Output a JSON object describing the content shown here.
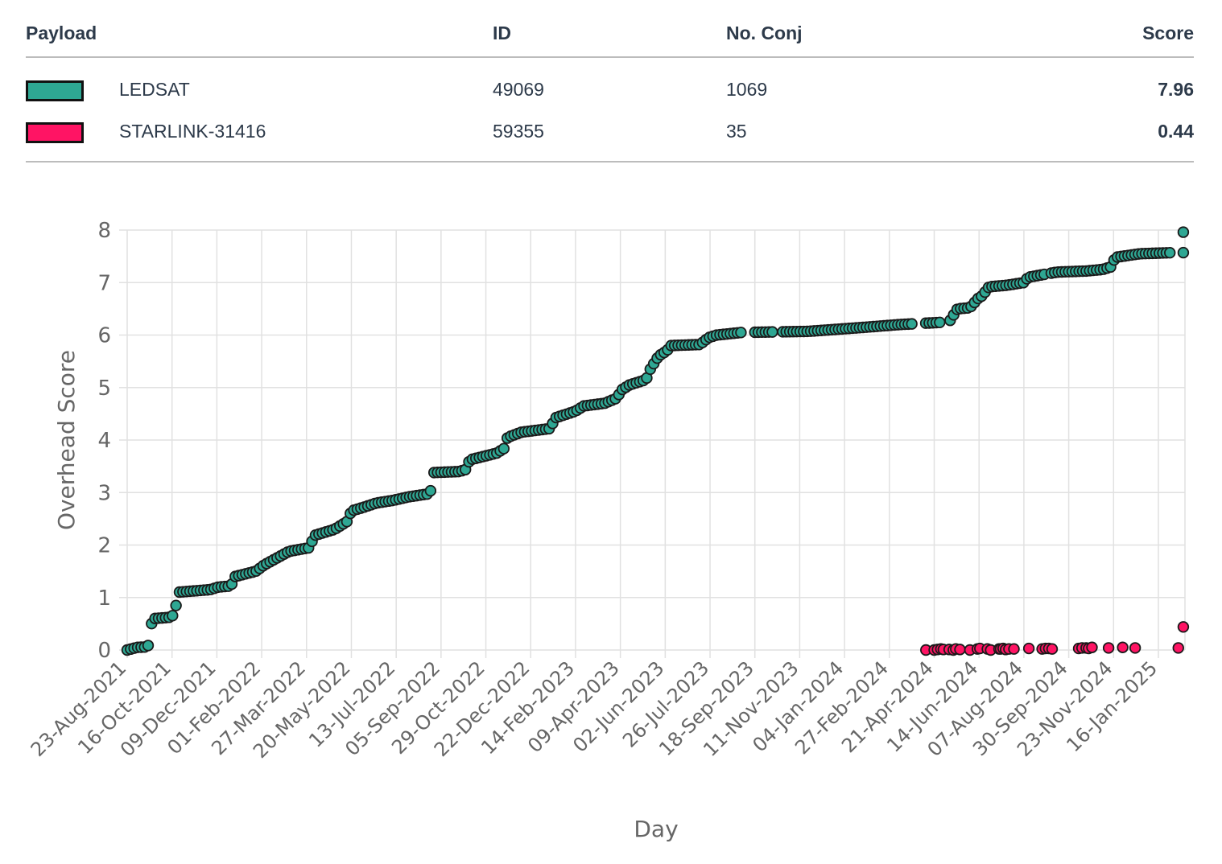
{
  "table": {
    "headers": {
      "payload": "Payload",
      "id": "ID",
      "conj": "No. Conj",
      "score": "Score"
    },
    "rows": [
      {
        "name": "LEDSAT",
        "id": "49069",
        "conj": "1069",
        "score": "7.96",
        "color": "#2ea793"
      },
      {
        "name": "STARLINK-31416",
        "id": "59355",
        "conj": "35",
        "score": "0.44",
        "color": "#ff1464"
      }
    ]
  },
  "chart_data": {
    "type": "scatter",
    "xlabel": "Day",
    "ylabel": "Overhead Score",
    "ylim": [
      0,
      8
    ],
    "yticks": [
      0,
      1,
      2,
      3,
      4,
      5,
      6,
      7,
      8
    ],
    "x_range_days": [
      0,
      1274
    ],
    "xticks": [
      {
        "day": 0,
        "label": "23-Aug-2021"
      },
      {
        "day": 54,
        "label": "16-Oct-2021"
      },
      {
        "day": 108,
        "label": "09-Dec-2021"
      },
      {
        "day": 162,
        "label": "01-Feb-2022"
      },
      {
        "day": 216,
        "label": "27-Mar-2022"
      },
      {
        "day": 270,
        "label": "20-May-2022"
      },
      {
        "day": 324,
        "label": "13-Jul-2022"
      },
      {
        "day": 378,
        "label": "05-Sep-2022"
      },
      {
        "day": 432,
        "label": "29-Oct-2022"
      },
      {
        "day": 486,
        "label": "22-Dec-2022"
      },
      {
        "day": 540,
        "label": "14-Feb-2023"
      },
      {
        "day": 594,
        "label": "09-Apr-2023"
      },
      {
        "day": 648,
        "label": "02-Jun-2023"
      },
      {
        "day": 702,
        "label": "26-Jul-2023"
      },
      {
        "day": 756,
        "label": "18-Sep-2023"
      },
      {
        "day": 810,
        "label": "11-Nov-2023"
      },
      {
        "day": 864,
        "label": "04-Jan-2024"
      },
      {
        "day": 918,
        "label": "27-Feb-2024"
      },
      {
        "day": 972,
        "label": "21-Apr-2024"
      },
      {
        "day": 1026,
        "label": "14-Jun-2024"
      },
      {
        "day": 1080,
        "label": "07-Aug-2024"
      },
      {
        "day": 1134,
        "label": "30-Sep-2024"
      },
      {
        "day": 1188,
        "label": "23-Nov-2024"
      },
      {
        "day": 1242,
        "label": "16-Jan-2025"
      }
    ],
    "series": [
      {
        "name": "LEDSAT",
        "color": "#2ea793",
        "curve": [
          [
            0,
            0.0
          ],
          [
            12,
            0.05
          ],
          [
            25,
            0.06
          ],
          [
            28,
            0.45
          ],
          [
            32,
            0.6
          ],
          [
            50,
            0.62
          ],
          [
            58,
            0.68
          ],
          [
            60,
            1.1
          ],
          [
            100,
            1.15
          ],
          [
            110,
            1.2
          ],
          [
            125,
            1.22
          ],
          [
            130,
            1.4
          ],
          [
            155,
            1.5
          ],
          [
            165,
            1.62
          ],
          [
            180,
            1.75
          ],
          [
            195,
            1.88
          ],
          [
            220,
            1.95
          ],
          [
            225,
            2.18
          ],
          [
            250,
            2.3
          ],
          [
            265,
            2.45
          ],
          [
            270,
            2.65
          ],
          [
            285,
            2.72
          ],
          [
            300,
            2.8
          ],
          [
            320,
            2.85
          ],
          [
            340,
            2.92
          ],
          [
            365,
            2.98
          ],
          [
            368,
            3.38
          ],
          [
            400,
            3.4
          ],
          [
            410,
            3.45
          ],
          [
            412,
            3.62
          ],
          [
            445,
            3.75
          ],
          [
            455,
            3.85
          ],
          [
            458,
            4.05
          ],
          [
            475,
            4.15
          ],
          [
            510,
            4.22
          ],
          [
            515,
            4.42
          ],
          [
            540,
            4.55
          ],
          [
            550,
            4.65
          ],
          [
            575,
            4.7
          ],
          [
            590,
            4.8
          ],
          [
            595,
            4.95
          ],
          [
            605,
            5.05
          ],
          [
            625,
            5.15
          ],
          [
            630,
            5.35
          ],
          [
            640,
            5.6
          ],
          [
            650,
            5.7
          ],
          [
            655,
            5.8
          ],
          [
            690,
            5.82
          ],
          [
            700,
            5.95
          ],
          [
            710,
            6.0
          ],
          [
            740,
            6.05
          ],
          [
            820,
            6.07
          ],
          [
            890,
            6.15
          ],
          [
            930,
            6.2
          ],
          [
            990,
            6.25
          ],
          [
            1000,
            6.5
          ],
          [
            1015,
            6.52
          ],
          [
            1025,
            6.7
          ],
          [
            1030,
            6.75
          ],
          [
            1038,
            6.92
          ],
          [
            1060,
            6.95
          ],
          [
            1080,
            7.0
          ],
          [
            1085,
            7.1
          ],
          [
            1120,
            7.2
          ],
          [
            1155,
            7.22
          ],
          [
            1175,
            7.25
          ],
          [
            1185,
            7.3
          ],
          [
            1190,
            7.48
          ],
          [
            1220,
            7.55
          ],
          [
            1260,
            7.57
          ]
        ],
        "gaps": [
          [
            742,
            752
          ],
          [
            780,
            788
          ],
          [
            948,
            958
          ],
          [
            982,
            988
          ],
          [
            1046,
            1050
          ],
          [
            1106,
            1112
          ]
        ],
        "step_days": 4.2,
        "extra_points": [
          [
            1272,
            7.96
          ],
          [
            1272,
            7.57
          ]
        ]
      },
      {
        "name": "STARLINK-31416",
        "color": "#ff1464",
        "points": [
          [
            962,
            0.0
          ],
          [
            972,
            0.0
          ],
          [
            976,
            0.01
          ],
          [
            980,
            0.02
          ],
          [
            983,
            0.01
          ],
          [
            990,
            0.01
          ],
          [
            995,
            0.0
          ],
          [
            998,
            0.02
          ],
          [
            1003,
            0.01
          ],
          [
            1015,
            0.0
          ],
          [
            1024,
            0.02
          ],
          [
            1027,
            0.03
          ],
          [
            1036,
            0.02
          ],
          [
            1040,
            0.0
          ],
          [
            1050,
            0.02
          ],
          [
            1052,
            0.02
          ],
          [
            1055,
            0.03
          ],
          [
            1058,
            0.01
          ],
          [
            1062,
            0.02
          ],
          [
            1068,
            0.02
          ],
          [
            1086,
            0.03
          ],
          [
            1102,
            0.02
          ],
          [
            1106,
            0.03
          ],
          [
            1110,
            0.03
          ],
          [
            1114,
            0.02
          ],
          [
            1146,
            0.03
          ],
          [
            1150,
            0.04
          ],
          [
            1155,
            0.04
          ],
          [
            1158,
            0.03
          ],
          [
            1162,
            0.05
          ],
          [
            1182,
            0.04
          ],
          [
            1199,
            0.05
          ],
          [
            1214,
            0.04
          ],
          [
            1266,
            0.04
          ],
          [
            1272,
            0.44
          ]
        ]
      }
    ]
  }
}
